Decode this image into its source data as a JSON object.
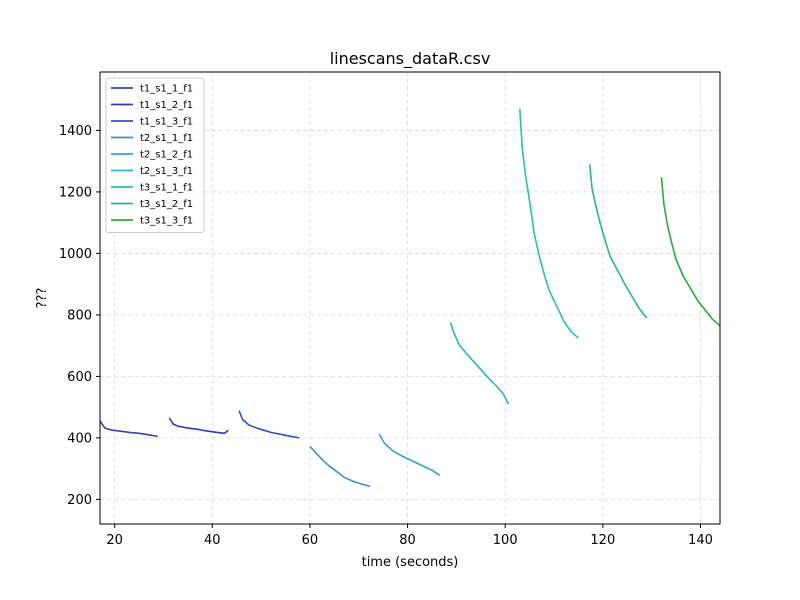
{
  "chart_data": {
    "type": "line",
    "title": "linescans_dataR.csv",
    "xlabel": "time (seconds)",
    "ylabel": "???",
    "xlim": [
      17,
      144
    ],
    "ylim": [
      120,
      1590
    ],
    "xticks": [
      20,
      40,
      60,
      80,
      100,
      120,
      140
    ],
    "yticks": [
      200,
      400,
      600,
      800,
      1000,
      1200,
      1400
    ],
    "grid": true,
    "legend_position": "top-left",
    "series": [
      {
        "name": "t1_s1_1_f1",
        "color": "#3f3fb3",
        "points": [
          [
            17,
            455
          ],
          [
            18,
            432
          ],
          [
            19.5,
            425
          ],
          [
            21,
            422
          ],
          [
            23,
            418
          ],
          [
            25,
            415
          ],
          [
            27,
            410
          ],
          [
            28.8,
            405
          ]
        ]
      },
      {
        "name": "t1_s1_2_f1",
        "color": "#3636c2",
        "points": [
          [
            31.2,
            465
          ],
          [
            32,
            445
          ],
          [
            33,
            438
          ],
          [
            35,
            432
          ],
          [
            37,
            428
          ],
          [
            39,
            422
          ],
          [
            41,
            418
          ],
          [
            42.5,
            415
          ],
          [
            43.3,
            425
          ]
        ]
      },
      {
        "name": "t1_s1_3_f1",
        "color": "#2b51d4",
        "points": [
          [
            45.5,
            488
          ],
          [
            46.2,
            460
          ],
          [
            47.5,
            442
          ],
          [
            49.5,
            430
          ],
          [
            52,
            418
          ],
          [
            54.5,
            410
          ],
          [
            56.5,
            404
          ],
          [
            57.8,
            400
          ]
        ]
      },
      {
        "name": "t2_s1_1_f1",
        "color": "#3a92d9",
        "points": [
          [
            60,
            372
          ],
          [
            61,
            355
          ],
          [
            62.5,
            330
          ],
          [
            64,
            308
          ],
          [
            65.5,
            290
          ],
          [
            67,
            272
          ],
          [
            69,
            258
          ],
          [
            71,
            248
          ],
          [
            72.3,
            242
          ]
        ]
      },
      {
        "name": "t2_s1_2_f1",
        "color": "#30a6d1",
        "points": [
          [
            74.2,
            412
          ],
          [
            75.3,
            382
          ],
          [
            77,
            358
          ],
          [
            79,
            340
          ],
          [
            81,
            325
          ],
          [
            83,
            310
          ],
          [
            85,
            295
          ],
          [
            86.6,
            278
          ]
        ]
      },
      {
        "name": "t2_s1_3_f1",
        "color": "#2fb3c8",
        "points": [
          [
            88.8,
            775
          ],
          [
            89.5,
            742
          ],
          [
            90.5,
            705
          ],
          [
            92,
            675
          ],
          [
            94,
            640
          ],
          [
            96,
            605
          ],
          [
            98,
            572
          ],
          [
            99.5,
            545
          ],
          [
            100.7,
            510
          ]
        ]
      },
      {
        "name": "t3_s1_1_f1",
        "color": "#28bfb1",
        "points": [
          [
            103,
            1470
          ],
          [
            103.5,
            1340
          ],
          [
            104.2,
            1250
          ],
          [
            105,
            1170
          ],
          [
            106,
            1060
          ],
          [
            107,
            990
          ],
          [
            108,
            930
          ],
          [
            109,
            880
          ],
          [
            110.5,
            830
          ],
          [
            112,
            780
          ],
          [
            113.5,
            745
          ],
          [
            115,
            725
          ]
        ]
      },
      {
        "name": "t3_s1_2_f1",
        "color": "#27b886",
        "points": [
          [
            117.3,
            1290
          ],
          [
            117.8,
            1210
          ],
          [
            118.5,
            1160
          ],
          [
            119.5,
            1095
          ],
          [
            120.5,
            1040
          ],
          [
            121.5,
            990
          ],
          [
            123,
            945
          ],
          [
            124.5,
            900
          ],
          [
            126,
            860
          ],
          [
            127.5,
            820
          ],
          [
            129,
            790
          ]
        ]
      },
      {
        "name": "t3_s1_3_f1",
        "color": "#2eaa3a",
        "points": [
          [
            132,
            1248
          ],
          [
            132.5,
            1160
          ],
          [
            133.2,
            1095
          ],
          [
            134,
            1040
          ],
          [
            135,
            980
          ],
          [
            136.5,
            925
          ],
          [
            138,
            885
          ],
          [
            139.5,
            845
          ],
          [
            141,
            815
          ],
          [
            142.5,
            785
          ],
          [
            144,
            765
          ]
        ]
      }
    ]
  }
}
